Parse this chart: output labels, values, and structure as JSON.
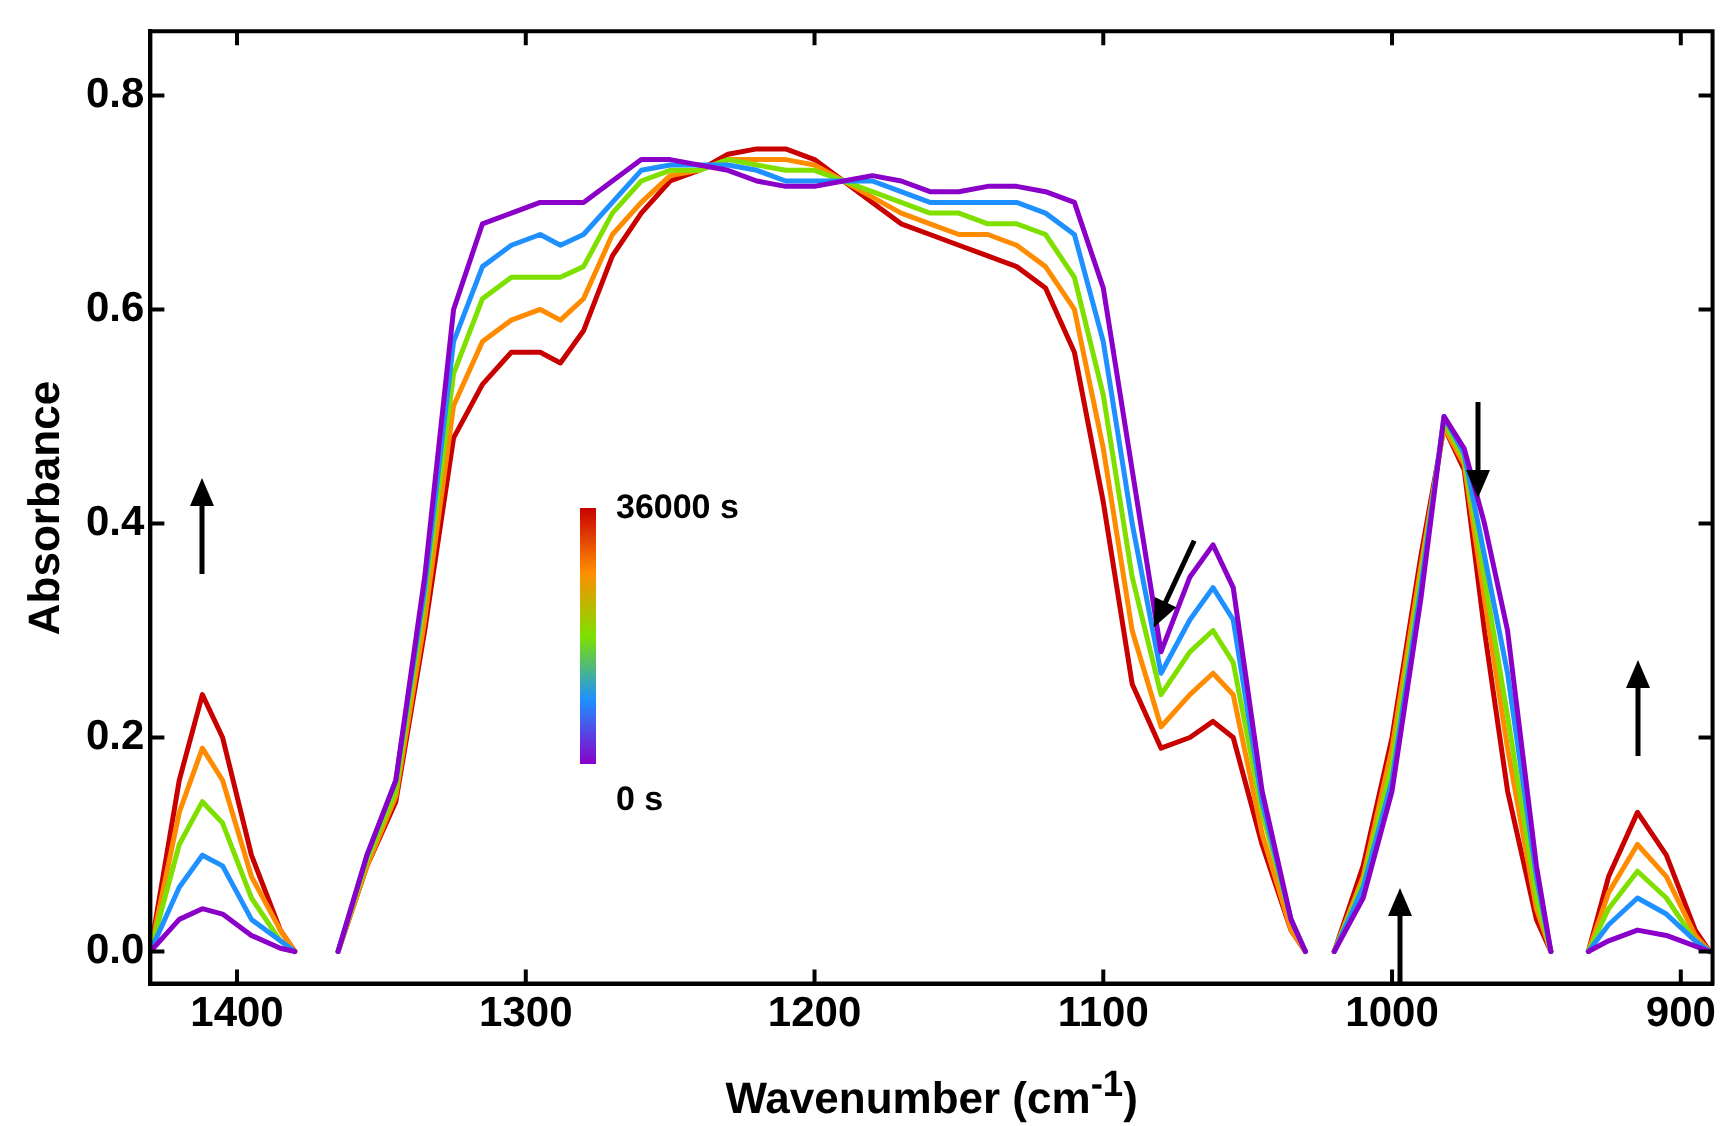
{
  "chart_data": {
    "type": "line",
    "xlabel": "Wavenumber (cm$^{-1}$)",
    "ylabel": "Absorbance",
    "xlim": [
      1430,
      889
    ],
    "xticks": [
      1400,
      1300,
      1200,
      1100,
      1000,
      900
    ],
    "ylim": [
      -0.03,
      0.86
    ],
    "yticks": [
      {
        "value": 0,
        "label": "0.0"
      },
      0.2,
      0.4,
      0.6,
      0.8
    ],
    "grid": false,
    "legend": false,
    "marker": "none",
    "line_style": "solid",
    "annotations": [
      "36000 s",
      "0 s"
    ],
    "x": [
      1430,
      1420,
      1412,
      1405,
      1395,
      1385,
      1380,
      1373,
      1365,
      1355,
      1345,
      1335,
      1325,
      1315,
      1305,
      1295,
      1288,
      1280,
      1270,
      1260,
      1250,
      1240,
      1230,
      1220,
      1210,
      1200,
      1190,
      1180,
      1170,
      1160,
      1150,
      1140,
      1130,
      1120,
      1110,
      1100,
      1090,
      1080,
      1070,
      1062,
      1055,
      1045,
      1035,
      1030,
      1025,
      1020,
      1010,
      1000,
      990,
      982,
      975,
      968,
      960,
      950,
      945,
      938,
      932,
      925,
      915,
      905,
      895,
      890
    ],
    "series": [
      {
        "color": "#8a00c8",
        "values": [
          0,
          0.03,
          0.04,
          0.035,
          0.015,
          0.003,
          0,
          null,
          0,
          0.09,
          0.16,
          0.35,
          0.6,
          0.68,
          0.69,
          0.7,
          0.7,
          0.7,
          0.72,
          0.74,
          0.74,
          0.735,
          0.73,
          0.72,
          0.715,
          0.715,
          0.72,
          0.725,
          0.72,
          0.71,
          0.71,
          0.715,
          0.715,
          0.71,
          0.7,
          0.62,
          0.45,
          0.28,
          0.35,
          0.38,
          0.34,
          0.15,
          0.03,
          0,
          null,
          0,
          0.05,
          0.15,
          0.33,
          0.5,
          0.47,
          0.4,
          0.3,
          0.08,
          0,
          null,
          0,
          0.01,
          0.02,
          0.015,
          0.005,
          0
        ]
      },
      {
        "color": "#1e90ff",
        "values": [
          0,
          0.06,
          0.09,
          0.08,
          0.03,
          0.01,
          0,
          null,
          0,
          0.09,
          0.16,
          0.34,
          0.57,
          0.64,
          0.66,
          0.67,
          0.66,
          0.67,
          0.7,
          0.73,
          0.735,
          0.735,
          0.735,
          0.73,
          0.72,
          0.72,
          0.72,
          0.72,
          0.71,
          0.7,
          0.7,
          0.7,
          0.7,
          0.69,
          0.67,
          0.57,
          0.4,
          0.26,
          0.31,
          0.34,
          0.31,
          0.14,
          0.03,
          0,
          null,
          0,
          0.06,
          0.16,
          0.34,
          0.5,
          0.465,
          0.37,
          0.26,
          0.07,
          0,
          null,
          0,
          0.025,
          0.05,
          0.035,
          0.01,
          0
        ]
      },
      {
        "color": "#7fe000",
        "values": [
          0,
          0.1,
          0.14,
          0.12,
          0.05,
          0.01,
          0,
          null,
          0,
          0.085,
          0.15,
          0.33,
          0.54,
          0.61,
          0.63,
          0.63,
          0.63,
          0.64,
          0.69,
          0.72,
          0.73,
          0.73,
          0.74,
          0.735,
          0.73,
          0.73,
          0.72,
          0.71,
          0.7,
          0.69,
          0.69,
          0.68,
          0.68,
          0.67,
          0.63,
          0.52,
          0.35,
          0.24,
          0.28,
          0.3,
          0.27,
          0.13,
          0.03,
          0,
          null,
          0,
          0.065,
          0.175,
          0.35,
          0.495,
          0.46,
          0.35,
          0.22,
          0.05,
          0,
          null,
          0,
          0.04,
          0.075,
          0.05,
          0.01,
          0
        ]
      },
      {
        "color": "#ff8c00",
        "values": [
          0,
          0.13,
          0.19,
          0.16,
          0.07,
          0.02,
          0,
          null,
          0,
          0.08,
          0.145,
          0.31,
          0.51,
          0.57,
          0.59,
          0.6,
          0.59,
          0.61,
          0.67,
          0.7,
          0.725,
          0.73,
          0.74,
          0.74,
          0.74,
          0.735,
          0.72,
          0.705,
          0.69,
          0.68,
          0.67,
          0.67,
          0.66,
          0.64,
          0.6,
          0.47,
          0.3,
          0.21,
          0.24,
          0.26,
          0.24,
          0.11,
          0.02,
          0,
          null,
          0,
          0.07,
          0.19,
          0.36,
          0.49,
          0.455,
          0.33,
          0.19,
          0.04,
          0,
          null,
          0,
          0.055,
          0.1,
          0.07,
          0.015,
          0
        ]
      },
      {
        "color": "#c80000",
        "values": [
          0,
          0.16,
          0.24,
          0.2,
          0.09,
          0.02,
          0,
          null,
          0,
          0.08,
          0.14,
          0.3,
          0.48,
          0.53,
          0.56,
          0.56,
          0.55,
          0.58,
          0.65,
          0.69,
          0.72,
          0.73,
          0.745,
          0.75,
          0.75,
          0.74,
          0.72,
          0.7,
          0.68,
          0.67,
          0.66,
          0.65,
          0.64,
          0.62,
          0.56,
          0.42,
          0.25,
          0.19,
          0.2,
          0.215,
          0.2,
          0.1,
          0.02,
          0,
          null,
          0,
          0.08,
          0.2,
          0.37,
          0.49,
          0.45,
          0.3,
          0.15,
          0.03,
          0,
          null,
          0,
          0.07,
          0.13,
          0.09,
          0.02,
          0
        ]
      }
    ]
  }
}
